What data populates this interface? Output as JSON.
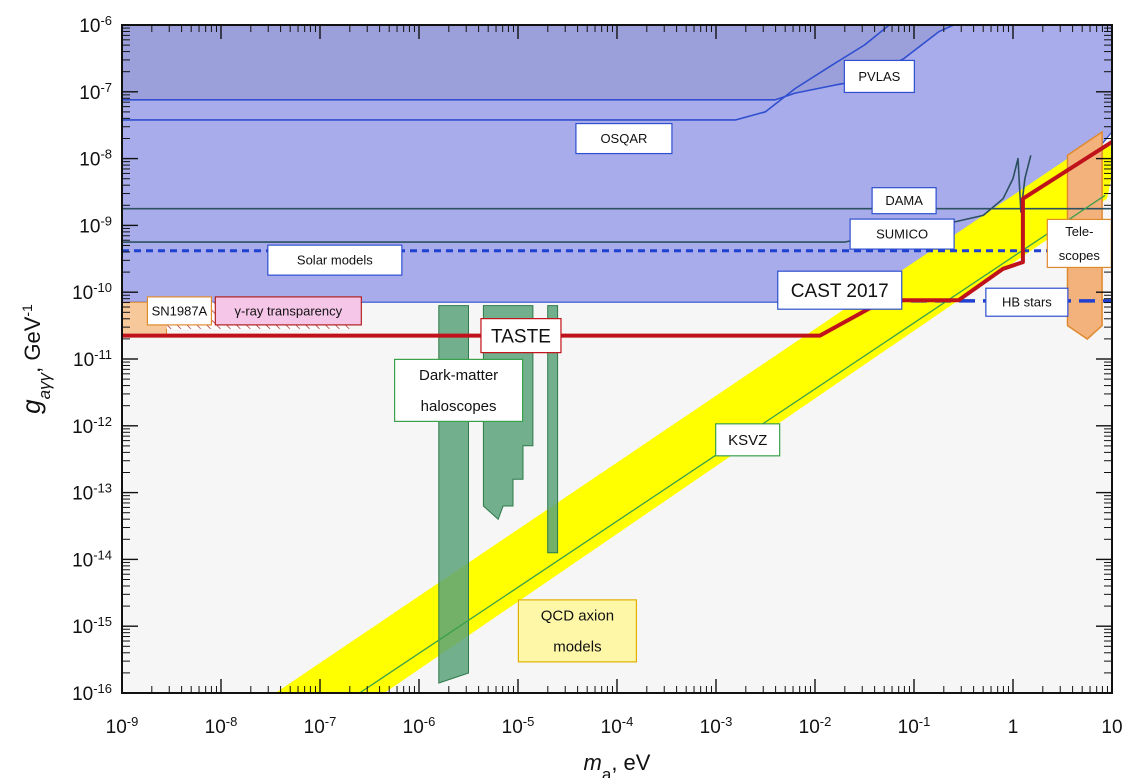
{
  "chart_data": {
    "type": "area",
    "title": "",
    "xlabel": "m_a, eV",
    "xlabel_main": "m",
    "xlabel_sub": "a",
    "xlabel_rest": ", eV",
    "ylabel_main": "g",
    "ylabel_sub": "aγγ",
    "ylabel_rest": ",  GeV",
    "ylabel_sup": "-1",
    "xscale": "log",
    "yscale": "log",
    "xlim_exp": [
      -9,
      1
    ],
    "ylim_exp": [
      -16,
      -6
    ],
    "grid": false,
    "x_ticks": [
      {
        "base": "10",
        "exp": "-9"
      },
      {
        "base": "10",
        "exp": "-8"
      },
      {
        "base": "10",
        "exp": "-7"
      },
      {
        "base": "10",
        "exp": "-6"
      },
      {
        "base": "10",
        "exp": "-5"
      },
      {
        "base": "10",
        "exp": "-4"
      },
      {
        "base": "10",
        "exp": "-3"
      },
      {
        "base": "10",
        "exp": "-2"
      },
      {
        "base": "10",
        "exp": "-1"
      },
      {
        "base": "1",
        "exp": ""
      },
      {
        "base": "10",
        "exp": ""
      }
    ],
    "y_ticks": [
      {
        "base": "10",
        "exp": "-16"
      },
      {
        "base": "10",
        "exp": "-15"
      },
      {
        "base": "10",
        "exp": "-14"
      },
      {
        "base": "10",
        "exp": "-13"
      },
      {
        "base": "10",
        "exp": "-12"
      },
      {
        "base": "10",
        "exp": "-11"
      },
      {
        "base": "10",
        "exp": "-10"
      },
      {
        "base": "10",
        "exp": "-9"
      },
      {
        "base": "10",
        "exp": "-8"
      },
      {
        "base": "10",
        "exp": "-7"
      },
      {
        "base": "10",
        "exp": "-6"
      }
    ],
    "series": [
      {
        "name": "CAST 2017",
        "color": "#a8acea",
        "points": [
          [
            -9,
            -10.15
          ],
          [
            -1.7,
            -10.15
          ],
          [
            -1.3,
            -9.85
          ],
          [
            -0.8,
            -9.72
          ],
          [
            -0.3,
            -9.62
          ],
          [
            0,
            -9.52
          ],
          [
            0.1,
            -9.35
          ],
          [
            0.3,
            -8.9
          ],
          [
            0.5,
            -8.4
          ],
          [
            0.75,
            -8.05
          ],
          [
            1,
            -7.6
          ],
          [
            1,
            -6
          ],
          [
            -9,
            -6
          ]
        ]
      },
      {
        "name": "PVLAS",
        "color": "#2f4fd0",
        "points": [
          [
            -9,
            -7.12
          ],
          [
            -2.4,
            -7.12
          ],
          [
            -2.2,
            -7.02
          ],
          [
            -1.8,
            -6.9
          ],
          [
            -1.5,
            -6.82
          ],
          [
            -1.1,
            -6.5
          ],
          [
            -0.75,
            -6.1
          ],
          [
            -0.6,
            -6
          ]
        ]
      },
      {
        "name": "OSQAR",
        "color": "#2f4fd0",
        "points": [
          [
            -9,
            -7.42
          ],
          [
            -2.8,
            -7.42
          ],
          [
            -2.5,
            -7.3
          ],
          [
            -2.2,
            -6.95
          ],
          [
            -1.85,
            -6.62
          ],
          [
            -1.5,
            -6.3
          ],
          [
            -1.25,
            -6
          ]
        ]
      },
      {
        "name": "DAMA",
        "color": "#2c5060",
        "points": [
          [
            -9,
            -8.75
          ],
          [
            1,
            -8.75
          ]
        ]
      },
      {
        "name": "SUMICO",
        "color": "#2c5060",
        "points": [
          [
            -9,
            -9.25
          ],
          [
            -1.7,
            -9.25
          ],
          [
            -1.4,
            -9.15
          ],
          [
            -1,
            -9.05
          ],
          [
            -0.6,
            -8.95
          ],
          [
            -0.3,
            -8.85
          ],
          [
            -0.1,
            -8.6
          ],
          [
            0,
            -8.3
          ],
          [
            0.05,
            -8.0
          ],
          [
            0.08,
            -8.8
          ],
          [
            0.12,
            -8.3
          ],
          [
            0.18,
            -7.95
          ]
        ]
      },
      {
        "name": "Solar models",
        "color": "#2040d0",
        "points": [
          [
            -9,
            -9.38
          ],
          [
            1,
            -9.38
          ]
        ]
      },
      {
        "name": "HB stars",
        "color": "#2040d0",
        "points": [
          [
            -2,
            -10.13
          ],
          [
            1,
            -10.13
          ]
        ]
      },
      {
        "name": "TASTE",
        "color": "#c0121a",
        "points": [
          [
            -9,
            -10.65
          ],
          [
            -1.95,
            -10.65
          ],
          [
            -1.3,
            -10.12
          ],
          [
            -0.55,
            -10.12
          ],
          [
            -0.1,
            -9.65
          ],
          [
            0.1,
            -9.55
          ],
          [
            0.1,
            -8.6
          ],
          [
            1,
            -7.75
          ]
        ]
      },
      {
        "name": "KSVZ",
        "color": "#3aa04a",
        "points": [
          [
            -6.6,
            -16
          ],
          [
            0.93,
            -8.55
          ]
        ]
      },
      {
        "name": "QCD axion models",
        "color": "#ffff00",
        "points": [
          [
            -7.45,
            -16
          ],
          [
            -6.35,
            -16
          ],
          [
            0.95,
            -8.6
          ],
          [
            1,
            -8.25
          ],
          [
            1,
            -7.8
          ],
          [
            0.55,
            -8.0
          ]
        ]
      },
      {
        "name": "Dark-matter haloscopes",
        "color": "#5aa27a",
        "points": [
          [
            -5.8,
            -10.2
          ],
          [
            -5.5,
            -10.2
          ],
          [
            -5.5,
            -15.7
          ],
          [
            -5.8,
            -15.85
          ]
        ]
      },
      {
        "name": "Tele-scopes",
        "color": "#f3b27c",
        "points": [
          [
            0.55,
            -7.95
          ],
          [
            0.9,
            -7.6
          ],
          [
            0.9,
            -10.5
          ],
          [
            0.75,
            -10.7
          ],
          [
            0.55,
            -10.5
          ]
        ]
      },
      {
        "name": "SN1987A",
        "color": "#f6c89a",
        "points": [
          [
            -9,
            -10.15
          ],
          [
            -8.55,
            -10.15
          ],
          [
            -8.55,
            -10.65
          ],
          [
            -9,
            -10.65
          ]
        ]
      },
      {
        "name": "γ-ray transparency",
        "color": "#b02020",
        "points": [
          [
            -8.55,
            -10.15
          ],
          [
            -6.7,
            -10.15
          ],
          [
            -6.7,
            -10.55
          ],
          [
            -8.55,
            -10.55
          ]
        ]
      }
    ],
    "labels": {
      "pvlas": "PVLAS",
      "osqar": "OSQAR",
      "dama": "DAMA",
      "sumico": "SUMICO",
      "solar": "Solar models",
      "cast": "CAST 2017",
      "telescopes_1": "Tele-",
      "telescopes_2": "scopes",
      "hb": "HB stars",
      "sn": "SN1987A",
      "gamma": "γ-ray transparency",
      "taste": "TASTE",
      "dm_1": "Dark-matter",
      "dm_2": "haloscopes",
      "ksvz": "KSVZ",
      "qcd_1": "QCD axion",
      "qcd_2": "models"
    },
    "colors": {
      "cast_fill": "#a8acea",
      "cast_top": "#8f93d0",
      "curve_blue": "#2f4fd0",
      "curve_dark": "#2c5060",
      "taste": "#c0121a",
      "ksvz": "#3aa04a",
      "qcd": "#ffff00",
      "haloscope": "#5aa27a",
      "telescope": "#f3b27c"
    }
  }
}
